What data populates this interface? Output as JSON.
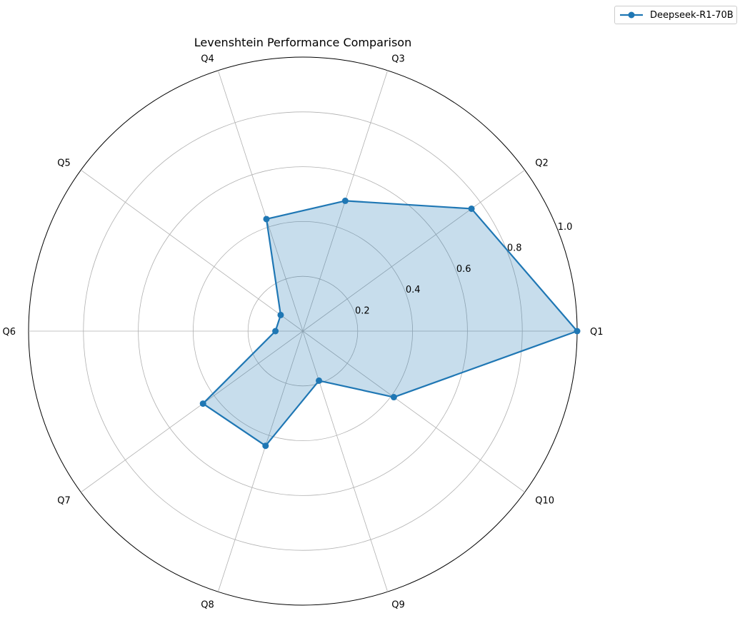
{
  "chart_data": {
    "type": "radar",
    "title": "Levenshtein Performance Comparison",
    "categories": [
      "Q1",
      "Q2",
      "Q3",
      "Q4",
      "Q5",
      "Q6",
      "Q7",
      "Q8",
      "Q9",
      "Q10"
    ],
    "series": [
      {
        "name": "Deepseek-R1-70B",
        "color": "#1f77b4",
        "fill_color": "#1f77b4",
        "fill_opacity": 0.25,
        "values": [
          1.0,
          0.76,
          0.5,
          0.43,
          0.1,
          0.1,
          0.45,
          0.44,
          0.19,
          0.41
        ]
      }
    ],
    "radial_ticks": [
      "0.2",
      "0.4",
      "0.6",
      "0.8",
      "1.0"
    ],
    "radial_tick_values": [
      0.2,
      0.4,
      0.6,
      0.8,
      1.0
    ],
    "rlim": [
      0,
      1.0
    ],
    "grid": true,
    "legend_position": "top-right"
  }
}
